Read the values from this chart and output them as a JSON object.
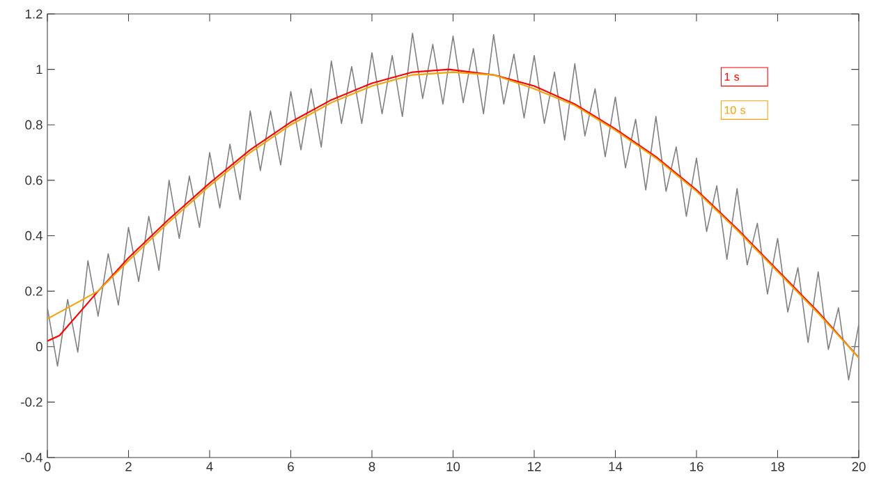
{
  "chart_data": {
    "type": "line",
    "xlim": [
      0,
      20
    ],
    "ylim": [
      -0.4,
      1.2
    ],
    "xticks": [
      0,
      2,
      4,
      6,
      8,
      10,
      12,
      14,
      16,
      18,
      20
    ],
    "yticks": [
      -0.4,
      -0.2,
      0,
      0.2,
      0.4,
      0.6,
      0.8,
      1,
      1.2
    ],
    "grid": false,
    "legend": "top right",
    "series": [
      {
        "color": "#808080",
        "x": [
          0,
          0.25,
          0.5,
          0.75,
          1,
          1.25,
          1.5,
          1.75,
          2,
          2.25,
          2.5,
          2.75,
          3,
          3.25,
          3.5,
          3.75,
          4,
          4.25,
          4.5,
          4.75,
          5,
          5.25,
          5.5,
          5.75,
          6,
          6.25,
          6.5,
          6.75,
          7,
          7.25,
          7.5,
          7.75,
          8,
          8.25,
          8.5,
          8.75,
          9,
          9.25,
          9.5,
          9.75,
          10,
          10.25,
          10.5,
          10.75,
          11,
          11.25,
          11.5,
          11.75,
          12,
          12.25,
          12.5,
          12.75,
          13,
          13.25,
          13.5,
          13.75,
          14,
          14.25,
          14.5,
          14.75,
          15,
          15.25,
          15.5,
          15.75,
          16,
          16.25,
          16.5,
          16.75,
          17,
          17.25,
          17.5,
          17.75,
          18,
          18.25,
          18.5,
          18.75,
          19,
          19.25,
          19.5,
          19.75,
          20
        ],
        "values": [
          0.14,
          -0.07,
          0.17,
          -0.02,
          0.31,
          0.11,
          0.335,
          0.15,
          0.43,
          0.235,
          0.47,
          0.275,
          0.6,
          0.39,
          0.615,
          0.43,
          0.7,
          0.5,
          0.73,
          0.53,
          0.85,
          0.635,
          0.85,
          0.655,
          0.92,
          0.71,
          0.93,
          0.72,
          1.03,
          0.805,
          1.01,
          0.805,
          1.06,
          0.84,
          1.05,
          0.83,
          1.13,
          0.895,
          1.09,
          0.875,
          1.12,
          0.88,
          1.075,
          0.84,
          1.125,
          0.875,
          1.055,
          0.825,
          1.05,
          0.805,
          0.99,
          0.745,
          1.02,
          0.76,
          0.93,
          0.685,
          0.9,
          0.645,
          0.82,
          0.565,
          0.83,
          0.56,
          0.72,
          0.47,
          0.68,
          0.415,
          0.58,
          0.315,
          0.57,
          0.295,
          0.445,
          0.19,
          0.39,
          0.125,
          0.285,
          0.015,
          0.27,
          -0.01,
          0.14,
          -0.12,
          0.08
        ]
      },
      {
        "name": "1 s",
        "color": "#ff0000",
        "x": [
          0,
          0.3,
          1.25,
          2,
          3,
          4,
          5,
          6,
          7,
          8,
          9,
          9.9,
          11,
          12,
          13,
          14,
          15,
          16,
          17,
          18,
          19,
          20
        ],
        "values": [
          0.02,
          0.04,
          0.2,
          0.32,
          0.46,
          0.59,
          0.71,
          0.81,
          0.89,
          0.95,
          0.99,
          1.0,
          0.98,
          0.94,
          0.875,
          0.785,
          0.685,
          0.565,
          0.425,
          0.275,
          0.125,
          -0.04
        ]
      },
      {
        "name": "10 s",
        "color": "#f0a30a",
        "x": [
          0,
          1.25,
          2,
          3,
          4,
          5,
          6,
          7,
          8,
          9,
          10,
          11,
          12,
          13,
          14,
          15,
          16,
          17,
          18,
          19,
          20
        ],
        "values": [
          0.1,
          0.2,
          0.31,
          0.45,
          0.58,
          0.7,
          0.8,
          0.88,
          0.94,
          0.98,
          0.99,
          0.98,
          0.93,
          0.87,
          0.78,
          0.68,
          0.56,
          0.42,
          0.27,
          0.12,
          -0.04
        ]
      }
    ]
  }
}
